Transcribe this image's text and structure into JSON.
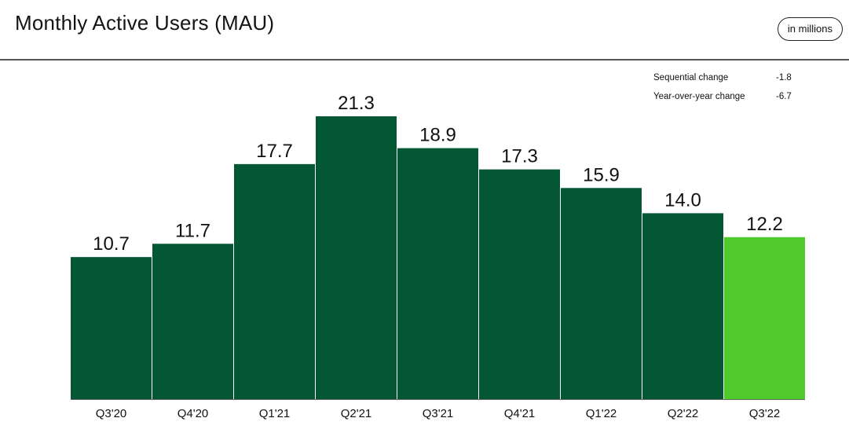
{
  "header": {
    "title": "Monthly Active Users (MAU)",
    "units_badge": "in millions"
  },
  "stats": [
    {
      "label": "Sequential change",
      "value": "-1.8"
    },
    {
      "label": "Year-over-year change",
      "value": "-6.7"
    }
  ],
  "colors": {
    "bar": "#035732",
    "highlight": "#4fc92b",
    "baseline": "#666666"
  },
  "chart_data": {
    "type": "bar",
    "title": "Monthly Active Users (MAU)",
    "unit": "in millions",
    "categories": [
      "Q3'20",
      "Q4'20",
      "Q1'21",
      "Q2'21",
      "Q3'21",
      "Q4'21",
      "Q1'22",
      "Q2'22",
      "Q3'22"
    ],
    "values": [
      10.7,
      11.7,
      17.7,
      21.3,
      18.9,
      17.3,
      15.9,
      14.0,
      12.2
    ],
    "value_labels": [
      "10.7",
      "11.7",
      "17.7",
      "21.3",
      "18.9",
      "17.3",
      "15.9",
      "14.0",
      "12.2"
    ],
    "highlight_category": "Q3'22",
    "ylim": [
      0,
      21.3
    ],
    "grid": false,
    "legend": "none"
  }
}
